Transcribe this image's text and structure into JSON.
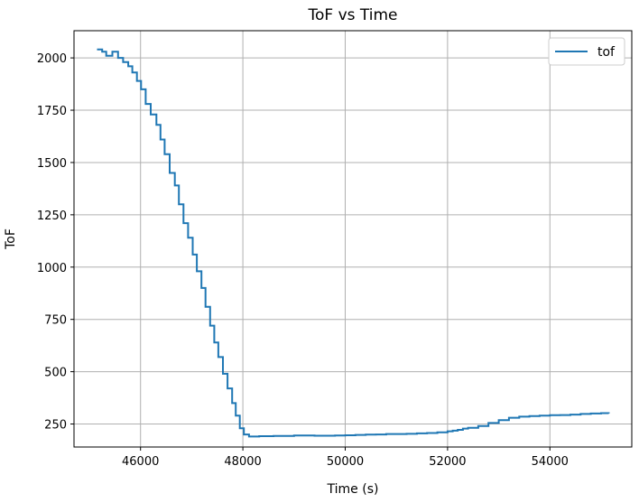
{
  "chart_data": {
    "type": "line",
    "title": "ToF vs Time",
    "xlabel": "Time (s)",
    "ylabel": "ToF",
    "xlim": [
      44700,
      55600
    ],
    "ylim": [
      140,
      2130
    ],
    "xticks": [
      46000,
      48000,
      50000,
      52000,
      54000
    ],
    "yticks": [
      250,
      500,
      750,
      1000,
      1250,
      1500,
      1750,
      2000
    ],
    "grid": true,
    "legend": {
      "position": "top-right",
      "entries": [
        "tof"
      ]
    },
    "series": [
      {
        "name": "tof",
        "color": "#1f77b4",
        "step": true,
        "x": [
          45150,
          45250,
          45330,
          45450,
          45560,
          45660,
          45760,
          45840,
          45930,
          46010,
          46100,
          46200,
          46310,
          46390,
          46470,
          46570,
          46670,
          46750,
          46840,
          46930,
          47020,
          47100,
          47190,
          47270,
          47360,
          47440,
          47520,
          47610,
          47700,
          47790,
          47860,
          47940,
          48020,
          48120,
          48220,
          48320,
          48420,
          48600,
          48800,
          49000,
          49200,
          49400,
          49600,
          49800,
          50000,
          50200,
          50400,
          50600,
          50800,
          51000,
          51200,
          51400,
          51600,
          51800,
          52000,
          52100,
          52200,
          52300,
          52400,
          52600,
          52800,
          53000,
          53200,
          53400,
          53600,
          53800,
          54000,
          54200,
          54400,
          54600,
          54800,
          55000,
          55150
        ],
        "y": [
          2040,
          2030,
          2010,
          2030,
          2000,
          1980,
          1960,
          1930,
          1890,
          1850,
          1780,
          1730,
          1680,
          1610,
          1540,
          1450,
          1390,
          1300,
          1210,
          1140,
          1060,
          980,
          900,
          810,
          720,
          640,
          570,
          490,
          420,
          350,
          290,
          230,
          200,
          190,
          190,
          192,
          192,
          193,
          193,
          195,
          195,
          194,
          194,
          195,
          196,
          198,
          199,
          200,
          202,
          202,
          203,
          205,
          207,
          210,
          215,
          218,
          222,
          228,
          232,
          240,
          255,
          268,
          280,
          285,
          288,
          290,
          292,
          293,
          295,
          298,
          300,
          302,
          300
        ]
      }
    ]
  }
}
